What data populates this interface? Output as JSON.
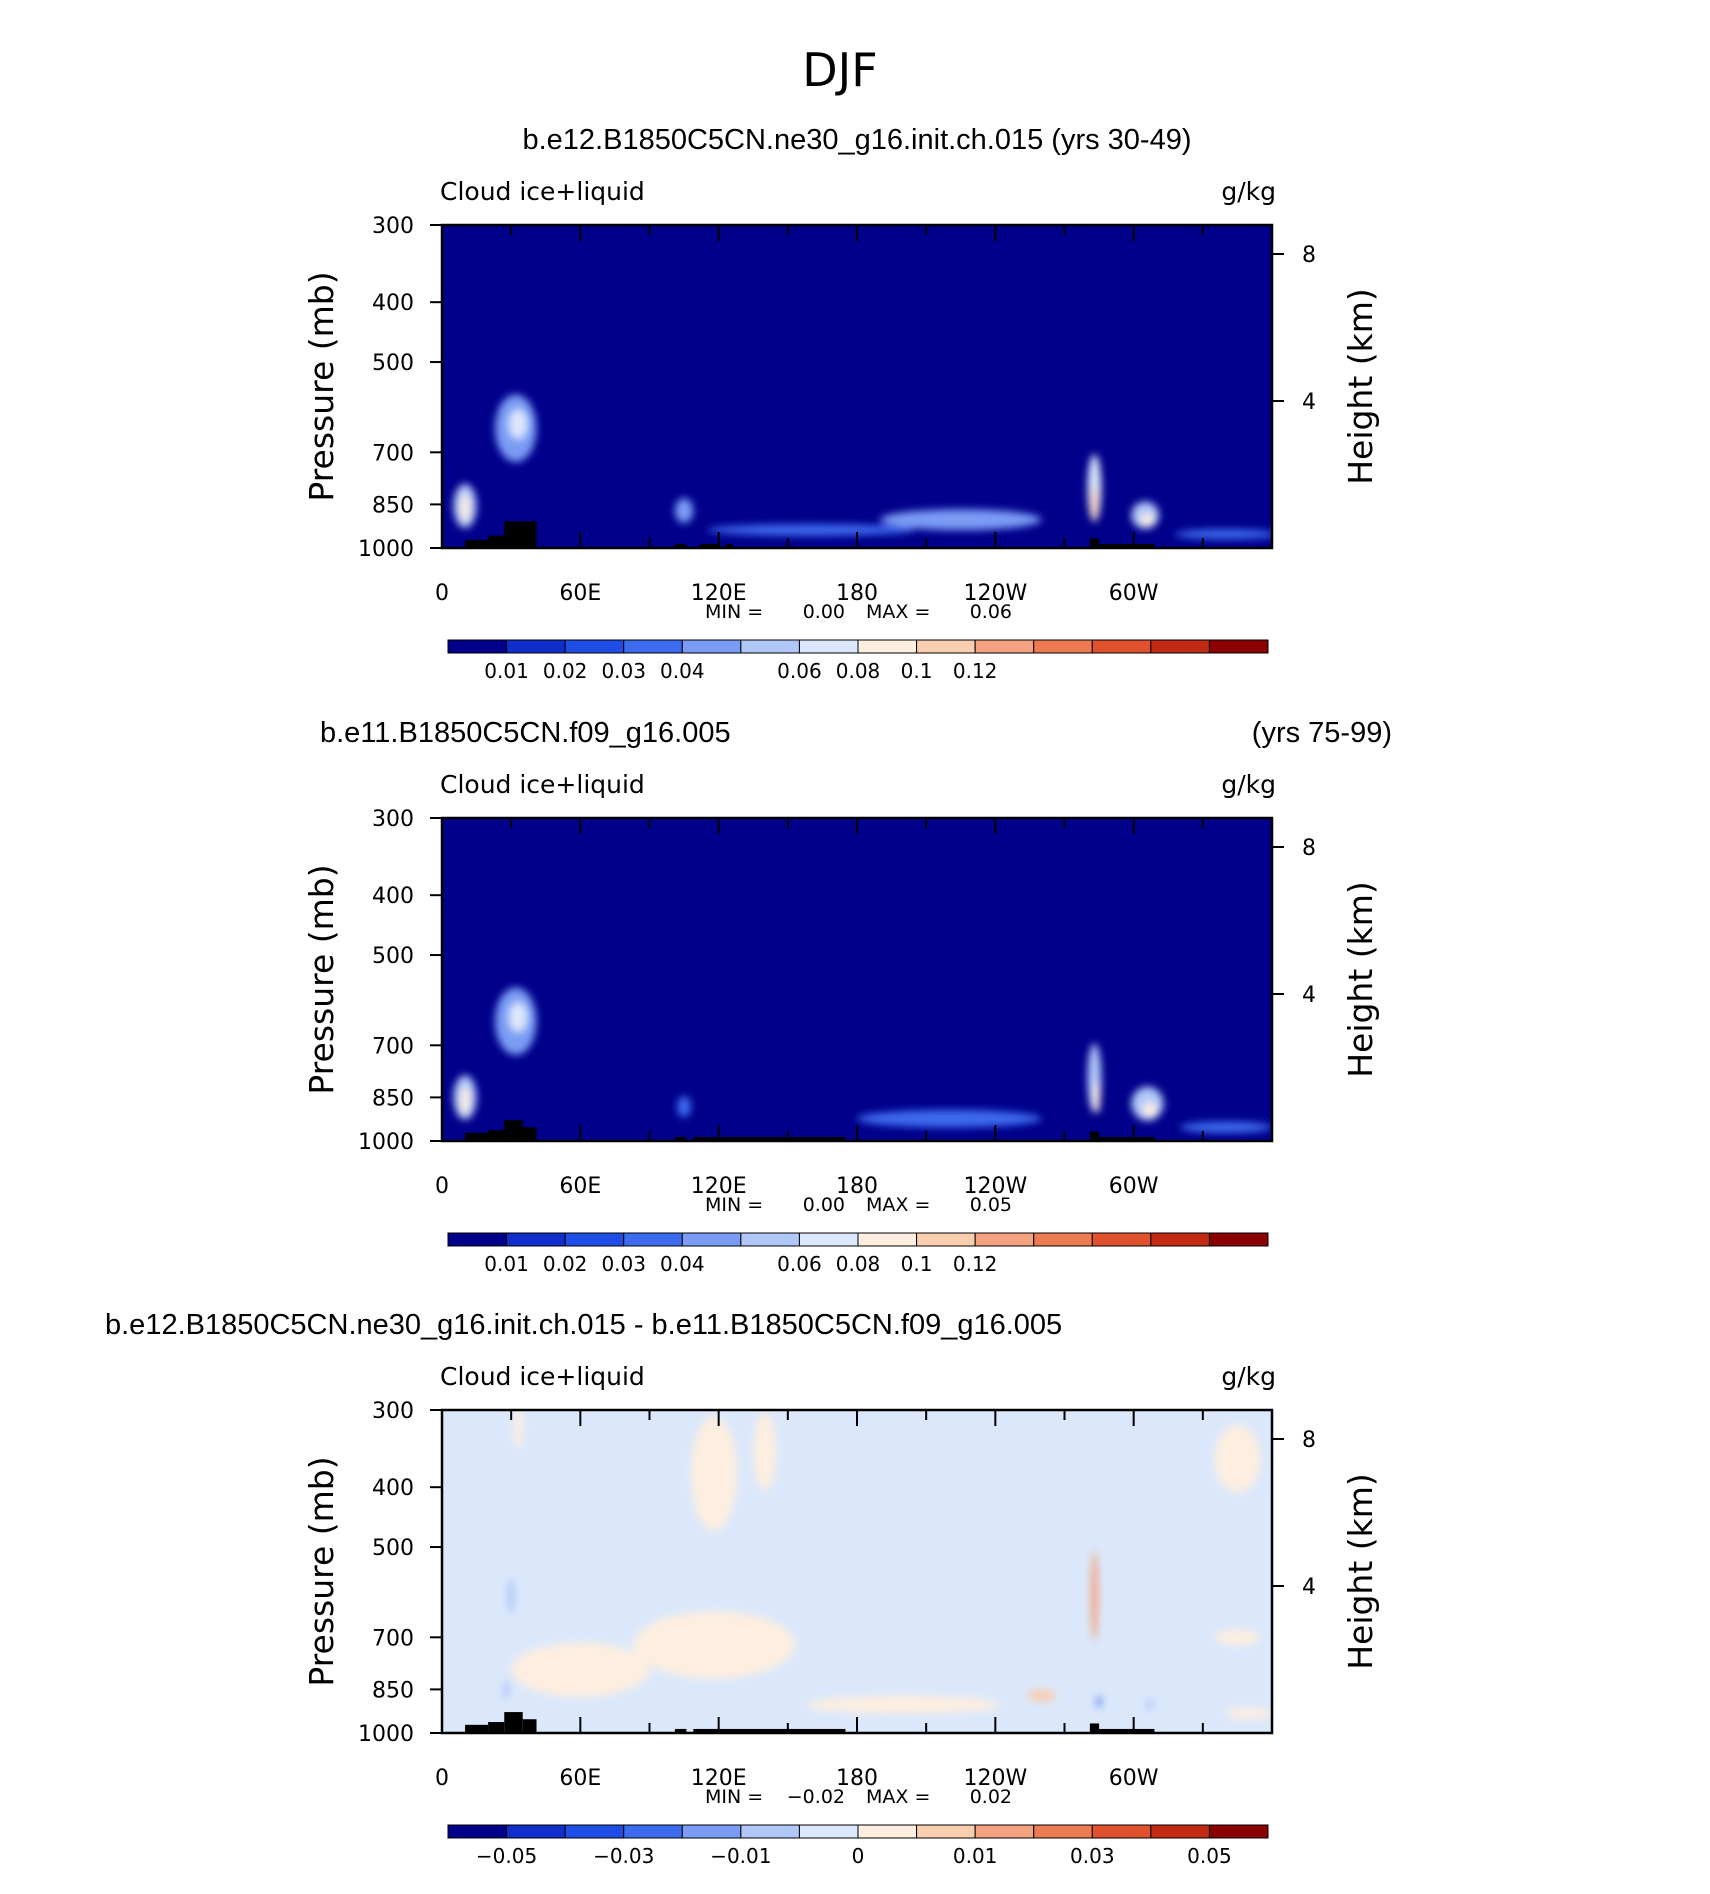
{
  "suptitle": "DJF",
  "chart_data": [
    {
      "type": "heatmap",
      "title": "b.e12.B1850C5CN.ne30_g16.init.ch.015 (yrs 30-49)",
      "title_right": "",
      "left_string": "Cloud ice+liquid",
      "right_string": "g/kg",
      "ylabel": "Pressure (mb)",
      "ylabel_right": "Height (km)",
      "y_ticks": [
        "300",
        "400",
        "500",
        "700",
        "850",
        "1000"
      ],
      "y_right_ticks": [
        "8",
        "4"
      ],
      "x_ticks": [
        "0",
        "60E",
        "120E",
        "180",
        "120W",
        "60W"
      ],
      "stats": {
        "min_label": "MIN =",
        "min": "0.00",
        "max_label": "MAX =",
        "max": "0.06"
      },
      "colorbar_labels": [
        "0.01",
        "0.02",
        "0.03",
        "0.04",
        "0.06",
        "0.08",
        "0.1",
        "0.12"
      ],
      "colorbar_colors": [
        "#00008b",
        "#0f2ecc",
        "#1f4ee6",
        "#3d6bf0",
        "#7a9cf5",
        "#b0c8f8",
        "#dbe8fb",
        "#fdeee0",
        "#f9cdb0",
        "#f4a27f",
        "#ee7a52",
        "#e0522e",
        "#c32a14",
        "#8b0000"
      ],
      "background_color": "#00008b",
      "features": [
        {
          "lon": 10,
          "p": 855,
          "dlon": 5,
          "dp": 140,
          "level": 5
        },
        {
          "lon": 10,
          "p": 860,
          "dlon": 2,
          "dp": 90,
          "level": 7
        },
        {
          "lon": 32,
          "p": 640,
          "dlon": 9,
          "dp": 160,
          "level": 4
        },
        {
          "lon": 33,
          "p": 630,
          "dlon": 4,
          "dp": 70,
          "level": 6
        },
        {
          "lon": 105,
          "p": 870,
          "dlon": 4,
          "dp": 80,
          "level": 4
        },
        {
          "lon": 160,
          "p": 935,
          "dlon": 45,
          "dp": 40,
          "level": 3
        },
        {
          "lon": 225,
          "p": 900,
          "dlon": 35,
          "dp": 70,
          "level": 4
        },
        {
          "lon": 283,
          "p": 800,
          "dlon": 3,
          "dp": 200,
          "level": 6
        },
        {
          "lon": 283,
          "p": 850,
          "dlon": 1.5,
          "dp": 110,
          "level": 8
        },
        {
          "lon": 305,
          "p": 885,
          "dlon": 6,
          "dp": 90,
          "level": 5
        },
        {
          "lon": 306,
          "p": 900,
          "dlon": 3,
          "dp": 40,
          "level": 7
        },
        {
          "lon": 340,
          "p": 950,
          "dlon": 22,
          "dp": 35,
          "level": 3
        }
      ],
      "topography": [
        {
          "lon0": 10,
          "lon1": 20,
          "p": 970
        },
        {
          "lon0": 20,
          "lon1": 27,
          "p": 955
        },
        {
          "lon0": 27,
          "lon1": 41,
          "p": 905
        },
        {
          "lon0": 101,
          "lon1": 106,
          "p": 985
        },
        {
          "lon0": 112,
          "lon1": 120,
          "p": 985
        },
        {
          "lon0": 123,
          "lon1": 126,
          "p": 985
        },
        {
          "lon0": 281,
          "lon1": 285,
          "p": 965
        },
        {
          "lon0": 285,
          "lon1": 309,
          "p": 985
        }
      ]
    },
    {
      "type": "heatmap",
      "title": "b.e11.B1850C5CN.f09_g16.005",
      "title_right": "(yrs 75-99)",
      "left_string": "Cloud ice+liquid",
      "right_string": "g/kg",
      "ylabel": "Pressure (mb)",
      "ylabel_right": "Height (km)",
      "y_ticks": [
        "300",
        "400",
        "500",
        "700",
        "850",
        "1000"
      ],
      "y_right_ticks": [
        "8",
        "4"
      ],
      "x_ticks": [
        "0",
        "60E",
        "120E",
        "180",
        "120W",
        "60W"
      ],
      "stats": {
        "min_label": "MIN =",
        "min": "0.00",
        "max_label": "MAX =",
        "max": "0.05"
      },
      "colorbar_labels": [
        "0.01",
        "0.02",
        "0.03",
        "0.04",
        "0.06",
        "0.08",
        "0.1",
        "0.12"
      ],
      "colorbar_colors": [
        "#00008b",
        "#0f2ecc",
        "#1f4ee6",
        "#3d6bf0",
        "#7a9cf5",
        "#b0c8f8",
        "#dbe8fb",
        "#fdeee0",
        "#f9cdb0",
        "#f4a27f",
        "#ee7a52",
        "#e0522e",
        "#c32a14",
        "#8b0000"
      ],
      "background_color": "#00008b",
      "features": [
        {
          "lon": 10,
          "p": 850,
          "dlon": 5,
          "dp": 140,
          "level": 5
        },
        {
          "lon": 10,
          "p": 860,
          "dlon": 2,
          "dp": 90,
          "level": 7
        },
        {
          "lon": 32,
          "p": 640,
          "dlon": 9,
          "dp": 160,
          "level": 4
        },
        {
          "lon": 33,
          "p": 630,
          "dlon": 4,
          "dp": 70,
          "level": 6
        },
        {
          "lon": 105,
          "p": 880,
          "dlon": 3,
          "dp": 70,
          "level": 3
        },
        {
          "lon": 220,
          "p": 920,
          "dlon": 40,
          "dp": 60,
          "level": 3
        },
        {
          "lon": 283,
          "p": 790,
          "dlon": 3,
          "dp": 200,
          "level": 5
        },
        {
          "lon": 284,
          "p": 850,
          "dlon": 1.5,
          "dp": 100,
          "level": 7
        },
        {
          "lon": 306,
          "p": 870,
          "dlon": 7,
          "dp": 110,
          "level": 5
        },
        {
          "lon": 307,
          "p": 890,
          "dlon": 3,
          "dp": 50,
          "level": 7
        },
        {
          "lon": 340,
          "p": 950,
          "dlon": 20,
          "dp": 40,
          "level": 3
        }
      ],
      "topography": [
        {
          "lon0": 10,
          "lon1": 20,
          "p": 970
        },
        {
          "lon0": 20,
          "lon1": 27,
          "p": 960
        },
        {
          "lon0": 27,
          "lon1": 35,
          "p": 925
        },
        {
          "lon0": 35,
          "lon1": 41,
          "p": 950
        },
        {
          "lon0": 101,
          "lon1": 106,
          "p": 985
        },
        {
          "lon0": 109,
          "lon1": 175,
          "p": 985
        },
        {
          "lon0": 281,
          "lon1": 285,
          "p": 965
        },
        {
          "lon0": 285,
          "lon1": 309,
          "p": 985
        }
      ]
    },
    {
      "type": "heatmap",
      "title": "b.e12.B1850C5CN.ne30_g16.init.ch.015 - b.e11.B1850C5CN.f09_g16.005",
      "title_right": "",
      "left_string": "Cloud ice+liquid",
      "right_string": "g/kg",
      "ylabel": "Pressure (mb)",
      "ylabel_right": "Height (km)",
      "y_ticks": [
        "300",
        "400",
        "500",
        "700",
        "850",
        "1000"
      ],
      "y_right_ticks": [
        "8",
        "4"
      ],
      "x_ticks": [
        "0",
        "60E",
        "120E",
        "180",
        "120W",
        "60W"
      ],
      "stats": {
        "min_label": "MIN =",
        "min": "−0.02",
        "max_label": "MAX =",
        "max": "0.02"
      },
      "colorbar_labels": [
        "−0.05",
        "−0.03",
        "−0.01",
        "0",
        "0.01",
        "0.03",
        "0.05"
      ],
      "colorbar_colors": [
        "#00008b",
        "#0f2ecc",
        "#1f4ee6",
        "#3d6bf0",
        "#7a9cf5",
        "#b0c8f8",
        "#dbe8fb",
        "#fdeee0",
        "#f9cdb0",
        "#f4a27f",
        "#ee7a52",
        "#e0522e",
        "#c32a14",
        "#8b0000"
      ],
      "background_color": "#dbe8fb",
      "features": [
        {
          "lon": 33,
          "p": 320,
          "dlon": 2,
          "dp": 60,
          "level": 7
        },
        {
          "lon": 118,
          "p": 380,
          "dlon": 10,
          "dp": 160,
          "level": 7
        },
        {
          "lon": 140,
          "p": 350,
          "dlon": 5,
          "dp": 100,
          "level": 7
        },
        {
          "lon": 60,
          "p": 790,
          "dlon": 30,
          "dp": 160,
          "level": 7
        },
        {
          "lon": 118,
          "p": 720,
          "dlon": 35,
          "dp": 180,
          "level": 7
        },
        {
          "lon": 200,
          "p": 900,
          "dlon": 42,
          "dp": 60,
          "level": 7
        },
        {
          "lon": 260,
          "p": 870,
          "dlon": 6,
          "dp": 40,
          "level": 8
        },
        {
          "lon": 283,
          "p": 600,
          "dlon": 1.5,
          "dp": 200,
          "level": 9
        },
        {
          "lon": 345,
          "p": 360,
          "dlon": 10,
          "dp": 90,
          "level": 7
        },
        {
          "lon": 345,
          "p": 700,
          "dlon": 10,
          "dp": 40,
          "level": 7
        },
        {
          "lon": 350,
          "p": 930,
          "dlon": 10,
          "dp": 40,
          "level": 7
        },
        {
          "lon": 30,
          "p": 600,
          "dlon": 1.5,
          "dp": 80,
          "level": 5
        },
        {
          "lon": 28,
          "p": 850,
          "dlon": 1.2,
          "dp": 60,
          "level": 5
        },
        {
          "lon": 285,
          "p": 890,
          "dlon": 1.5,
          "dp": 40,
          "level": 4
        },
        {
          "lon": 307,
          "p": 900,
          "dlon": 1.5,
          "dp": 40,
          "level": 5
        }
      ],
      "topography": [
        {
          "lon0": 10,
          "lon1": 20,
          "p": 970
        },
        {
          "lon0": 20,
          "lon1": 27,
          "p": 960
        },
        {
          "lon0": 27,
          "lon1": 35,
          "p": 925
        },
        {
          "lon0": 35,
          "lon1": 41,
          "p": 950
        },
        {
          "lon0": 101,
          "lon1": 106,
          "p": 985
        },
        {
          "lon0": 109,
          "lon1": 175,
          "p": 985
        },
        {
          "lon0": 281,
          "lon1": 285,
          "p": 965
        },
        {
          "lon0": 285,
          "lon1": 309,
          "p": 985
        }
      ]
    }
  ]
}
